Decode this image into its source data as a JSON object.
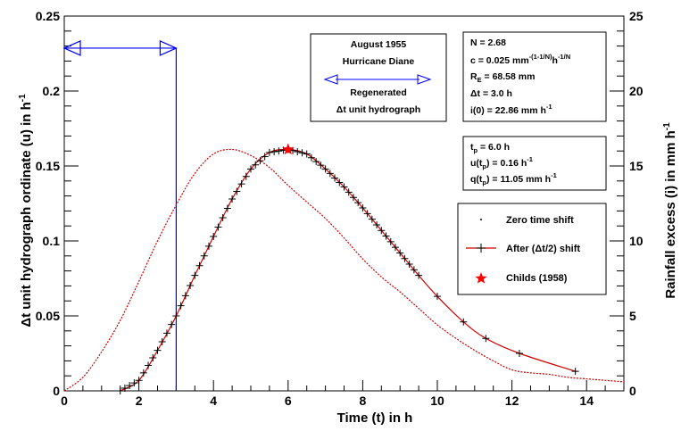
{
  "chart_data": {
    "type": "line",
    "title": "",
    "xlabel": "Time (t) in h",
    "ylabel": "Δt unit hydrograph ordinate (u) in h",
    "ylabel_sup": "-1",
    "y2label": "Rainfall excess (i) in mm h",
    "y2label_sup": "-1",
    "xlim": [
      0,
      15
    ],
    "ylim": [
      0,
      0.25
    ],
    "y2lim": [
      0,
      25
    ],
    "xticks": [
      "0",
      "2",
      "4",
      "6",
      "8",
      "10",
      "12",
      "14"
    ],
    "yticks": [
      "0",
      "0.05",
      "0.1",
      "0.15",
      "0.2",
      "0.25"
    ],
    "y2ticks": [
      "0",
      "5",
      "10",
      "15",
      "20",
      "25"
    ],
    "grid": false,
    "rainfall_pulse": {
      "color": "#0000ff",
      "duration_h": 3.0,
      "intensity_mm_per_h": 22.86
    },
    "series": [
      {
        "name": "Zero time shift",
        "color": "#cc0000",
        "style": "dotted",
        "x": [
          0,
          0.5,
          1.0,
          1.5,
          2.0,
          2.5,
          3.0,
          3.5,
          4.0,
          4.5,
          5.0,
          5.5,
          6.0,
          6.5,
          7.0,
          7.5,
          8.0,
          8.5,
          9.0,
          9.5,
          10.0,
          10.5,
          11.0,
          11.5,
          12.0,
          12.5,
          13.0,
          13.5,
          14.0,
          14.5,
          15.0
        ],
        "y": [
          0,
          0.009,
          0.026,
          0.047,
          0.073,
          0.1,
          0.124,
          0.145,
          0.158,
          0.161,
          0.157,
          0.149,
          0.137,
          0.126,
          0.115,
          0.102,
          0.088,
          0.076,
          0.066,
          0.055,
          0.044,
          0.035,
          0.027,
          0.02,
          0.014,
          0.012,
          0.011,
          0.009,
          0.008,
          0.007,
          0.006
        ]
      },
      {
        "name": "After (Δt/2) shift",
        "color": "#cc0000",
        "style": "solid",
        "marker": "+",
        "x": [
          1.5,
          2.0,
          2.5,
          3.0,
          3.5,
          4.0,
          4.5,
          5.0,
          5.5,
          6.0,
          6.5,
          7.0,
          7.5,
          8.0,
          8.5,
          9.0,
          9.5,
          10.0,
          10.7,
          11.3,
          12.2,
          13.7
        ],
        "y": [
          0,
          0.007,
          0.027,
          0.05,
          0.077,
          0.103,
          0.128,
          0.148,
          0.159,
          0.161,
          0.158,
          0.148,
          0.136,
          0.122,
          0.107,
          0.092,
          0.077,
          0.063,
          0.046,
          0.035,
          0.025,
          0.013
        ]
      }
    ],
    "childs_point": {
      "name": "Childs (1958)",
      "x": 6.0,
      "y": 0.161,
      "color": "#ff0000"
    },
    "legend": {
      "placement": "right",
      "entries": [
        {
          "label": "Zero time shift"
        },
        {
          "label": "After (Δt/2) shift"
        },
        {
          "label": "Childs (1958)"
        }
      ]
    },
    "annotations": {
      "event_box": {
        "line1": "August 1955",
        "line2": "Hurricane Diane",
        "line3": "Regenerated",
        "line4": "Δt unit hydrograph"
      },
      "params_box": {
        "n": "N = 2.68",
        "c_main": "c = 0.025 mm",
        "c_sup1": "-(1-1/N)",
        "c_mid": "h",
        "c_sup2": "-1/N",
        "re_main": "R",
        "re_sub": "E",
        "re_rest": " = 68.58 mm",
        "dt": "Δt = 3.0 h",
        "i0_main": "i(0) = 22.86 mm h",
        "i0_sup": "-1"
      },
      "peak_box": {
        "tp_main": "t",
        "tp_sub": "p",
        "tp_rest": " = 6.0 h",
        "u_main": "u(t",
        "u_sub": "p",
        "u_rest": ") = 0.16 h",
        "u_sup": "-1",
        "q_main": "q(t",
        "q_sub": "p",
        "q_rest": ") = 11.05 mm h",
        "q_sup": "-1"
      }
    }
  }
}
